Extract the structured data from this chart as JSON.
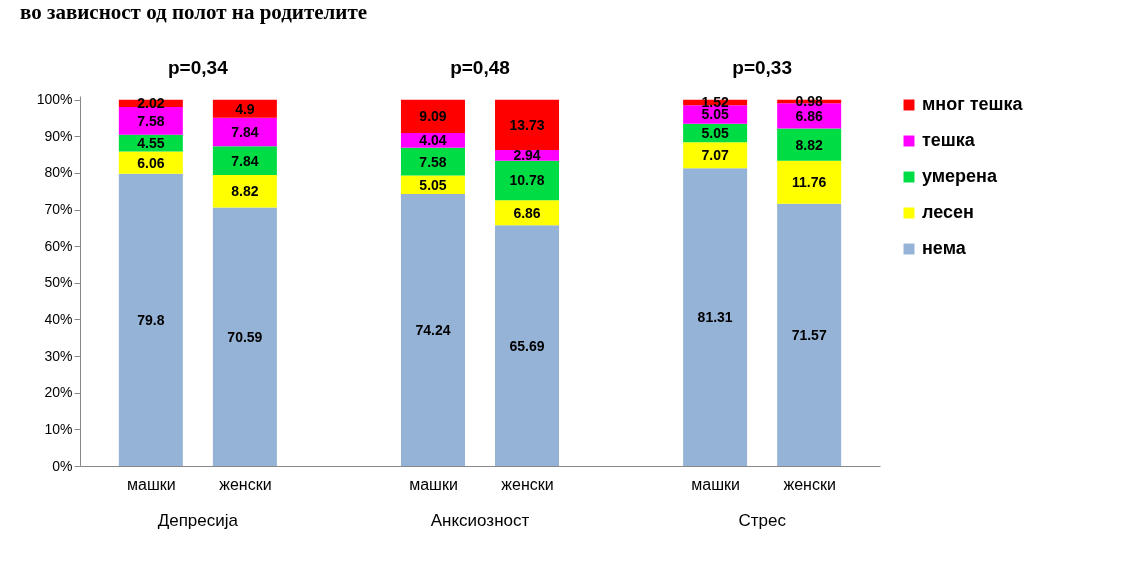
{
  "chart_data": {
    "type": "bar",
    "stacked": true,
    "title": "во зависност од полот на родителите",
    "categories": [
      "машки",
      "женски",
      "машки",
      "женски",
      "машки",
      "женски"
    ],
    "series": [
      {
        "name": "нема",
        "color": "#95b3d7",
        "values": [
          79.8,
          70.59,
          74.24,
          65.69,
          81.31,
          71.57
        ]
      },
      {
        "name": "лесен",
        "color": "#ffff00",
        "values": [
          6.06,
          8.82,
          5.05,
          6.86,
          7.07,
          11.76
        ]
      },
      {
        "name": "умерена",
        "color": "#00dd44",
        "values": [
          4.55,
          7.84,
          7.58,
          10.78,
          5.05,
          8.82
        ]
      },
      {
        "name": "тешка",
        "color": "#ff00ff",
        "values": [
          7.58,
          7.84,
          4.04,
          2.94,
          5.05,
          6.86
        ]
      },
      {
        "name": "мног тешка",
        "color": "#ff0000",
        "values": [
          2.02,
          4.9,
          9.09,
          13.73,
          1.52,
          0.98
        ]
      }
    ],
    "ylim": [
      0,
      101
    ],
    "yticks": [
      {
        "value": 0,
        "label": "0%"
      },
      {
        "value": 10,
        "label": "10%"
      },
      {
        "value": 20,
        "label": "20%"
      },
      {
        "value": 30,
        "label": "30%"
      },
      {
        "value": 40,
        "label": "40%"
      },
      {
        "value": 50,
        "label": "50%"
      },
      {
        "value": 60,
        "label": "60%"
      },
      {
        "value": 70,
        "label": "70%"
      },
      {
        "value": 80,
        "label": "80%"
      },
      {
        "value": 90,
        "label": "90%"
      },
      {
        "value": 100,
        "label": "100%"
      }
    ],
    "data_labels": true,
    "legend": "right",
    "grid": false,
    "annotations": [
      "p=0,34",
      "p=0,48",
      "p=0,33",
      "Депресија",
      "Анксиозност",
      "Стрес"
    ]
  }
}
